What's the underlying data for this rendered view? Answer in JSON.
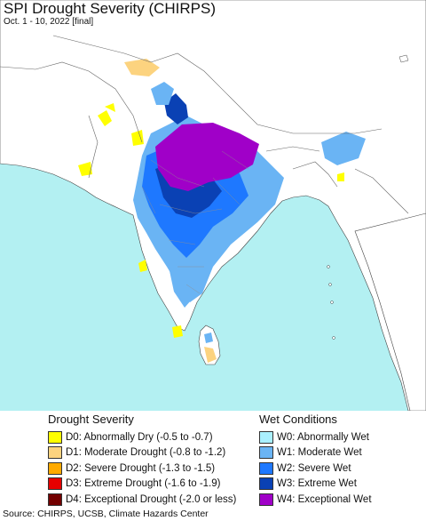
{
  "header": {
    "title": "SPI Drought Severity (CHIRPS)",
    "subtitle": "Oct. 1 - 10, 2022 [final]"
  },
  "map": {
    "ocean_color": "#b3f0f2",
    "land_color": "#ffffff"
  },
  "legend": {
    "drought": {
      "heading": "Drought Severity",
      "items": [
        {
          "code": "D0",
          "label": "D0: Abnormally Dry (-0.5 to -0.7)",
          "color": "#ffff00"
        },
        {
          "code": "D1",
          "label": "D1: Moderate Drought (-0.8 to -1.2)",
          "color": "#fcd37f"
        },
        {
          "code": "D2",
          "label": "D2: Severe Drought (-1.3 to -1.5)",
          "color": "#ffaa00"
        },
        {
          "code": "D3",
          "label": "D3: Extreme Drought (-1.6 to -1.9)",
          "color": "#e60000"
        },
        {
          "code": "D4",
          "label": "D4: Exceptional Drought (-2.0 or less)",
          "color": "#730000"
        }
      ]
    },
    "wet": {
      "heading": "Wet Conditions",
      "items": [
        {
          "code": "W0",
          "label": "W0: Abnormally Wet",
          "color": "#aaf0ff"
        },
        {
          "code": "W1",
          "label": "W1: Moderate Wet",
          "color": "#6ab4f4"
        },
        {
          "code": "W2",
          "label": "W2: Severe Wet",
          "color": "#1e78ff"
        },
        {
          "code": "W3",
          "label": "W3: Extreme Wet",
          "color": "#0a41b4"
        },
        {
          "code": "W4",
          "label": "W4: Exceptional Wet",
          "color": "#a000c8"
        }
      ]
    }
  },
  "footer": {
    "source": "Source: CHIRPS, UCSB, Climate Hazards Center"
  }
}
